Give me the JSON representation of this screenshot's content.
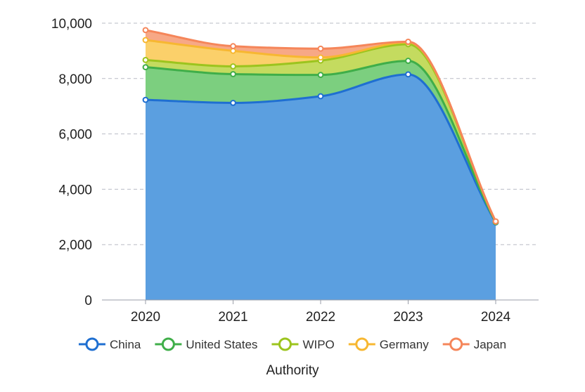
{
  "chart_data": {
    "type": "area",
    "stacked": true,
    "smooth": true,
    "categories": [
      "2020",
      "2021",
      "2022",
      "2023",
      "2024"
    ],
    "series": [
      {
        "name": "China",
        "color": "#1f6fd1",
        "fill": "#5b9fe0",
        "values": [
          7230,
          7120,
          7360,
          8150,
          2800
        ]
      },
      {
        "name": "United States",
        "color": "#3fae49",
        "fill": "#7ccf7f",
        "values": [
          1180,
          1040,
          770,
          490,
          15
        ]
      },
      {
        "name": "WIPO",
        "color": "#9cc41e",
        "fill": "#c4db5f",
        "values": [
          260,
          280,
          520,
          600,
          10
        ]
      },
      {
        "name": "Germany",
        "color": "#f7b731",
        "fill": "#fbd06a",
        "values": [
          720,
          560,
          110,
          70,
          10
        ]
      },
      {
        "name": "Japan",
        "color": "#f5865a",
        "fill": "#f7a886",
        "values": [
          360,
          170,
          320,
          20,
          5
        ]
      }
    ],
    "ylim": [
      0,
      10000
    ],
    "yticks": [
      "0",
      "2,000",
      "4,000",
      "6,000",
      "8,000",
      "10,000"
    ],
    "ytick_values": [
      0,
      2000,
      4000,
      6000,
      8000,
      10000
    ],
    "legend_title": "Authority",
    "legend_position": "bottom",
    "grid": "horizontal-dashed"
  }
}
